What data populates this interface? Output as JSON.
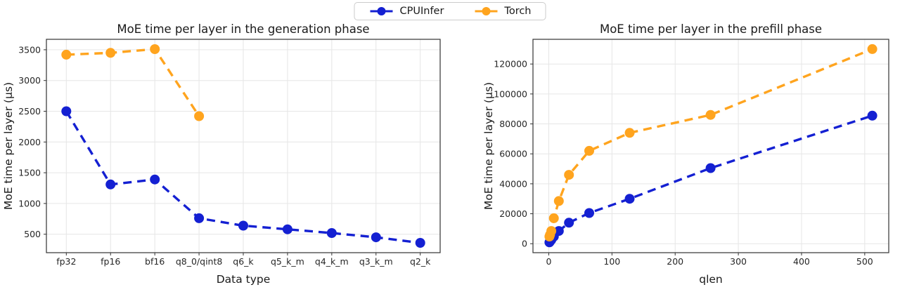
{
  "legend": {
    "entries": [
      {
        "label": "CPUInfer",
        "color": "#1420d2"
      },
      {
        "label": "Torch",
        "color": "#ffa41e"
      }
    ]
  },
  "colors": {
    "grid": "#e6e6e6",
    "spine": "#333333",
    "text": "#1a1a1a",
    "tick_text": "#262626"
  },
  "chart_data": [
    {
      "type": "line",
      "title": "MoE time per layer in the generation phase",
      "xlabel": "Data type",
      "ylabel": "MoE time per layer (µs)",
      "categories": [
        "fp32",
        "fp16",
        "bf16",
        "q8_0/qint8",
        "q6_k",
        "q5_k_m",
        "q4_k_m",
        "q3_k_m",
        "q2_k"
      ],
      "yticks": [
        500,
        1000,
        1500,
        2000,
        2500,
        3000,
        3500
      ],
      "ylim": [
        200,
        3670
      ],
      "grid": true,
      "line_style": "dashed",
      "legend_position": "top-center-figure",
      "series": [
        {
          "name": "CPUInfer",
          "color": "#1420d2",
          "values": [
            2500,
            1310,
            1390,
            760,
            640,
            580,
            520,
            450,
            360
          ]
        },
        {
          "name": "Torch",
          "color": "#ffa41e",
          "values": [
            3420,
            3450,
            3510,
            2420,
            null,
            null,
            null,
            null,
            null
          ]
        }
      ]
    },
    {
      "type": "line",
      "title": "MoE time per layer in the prefill phase",
      "xlabel": "qlen",
      "ylabel": "MoE time per layer (µs)",
      "x": [
        1,
        2,
        4,
        8,
        16,
        32,
        64,
        128,
        256,
        512
      ],
      "xticks": [
        0,
        100,
        200,
        300,
        400,
        500
      ],
      "yticks": [
        0,
        20000,
        40000,
        60000,
        80000,
        100000,
        120000
      ],
      "xlim": [
        -25,
        538
      ],
      "ylim": [
        -6000,
        136500
      ],
      "grid": true,
      "line_style": "dashed",
      "series": [
        {
          "name": "CPUInfer",
          "color": "#1420d2",
          "values": [
            900,
            1500,
            2600,
            4800,
            8500,
            14000,
            20500,
            30000,
            50500,
            85500
          ]
        },
        {
          "name": "Torch",
          "color": "#ffa41e",
          "values": [
            4800,
            6000,
            8500,
            17000,
            28500,
            46000,
            62000,
            74000,
            86000,
            130000
          ]
        }
      ]
    }
  ]
}
